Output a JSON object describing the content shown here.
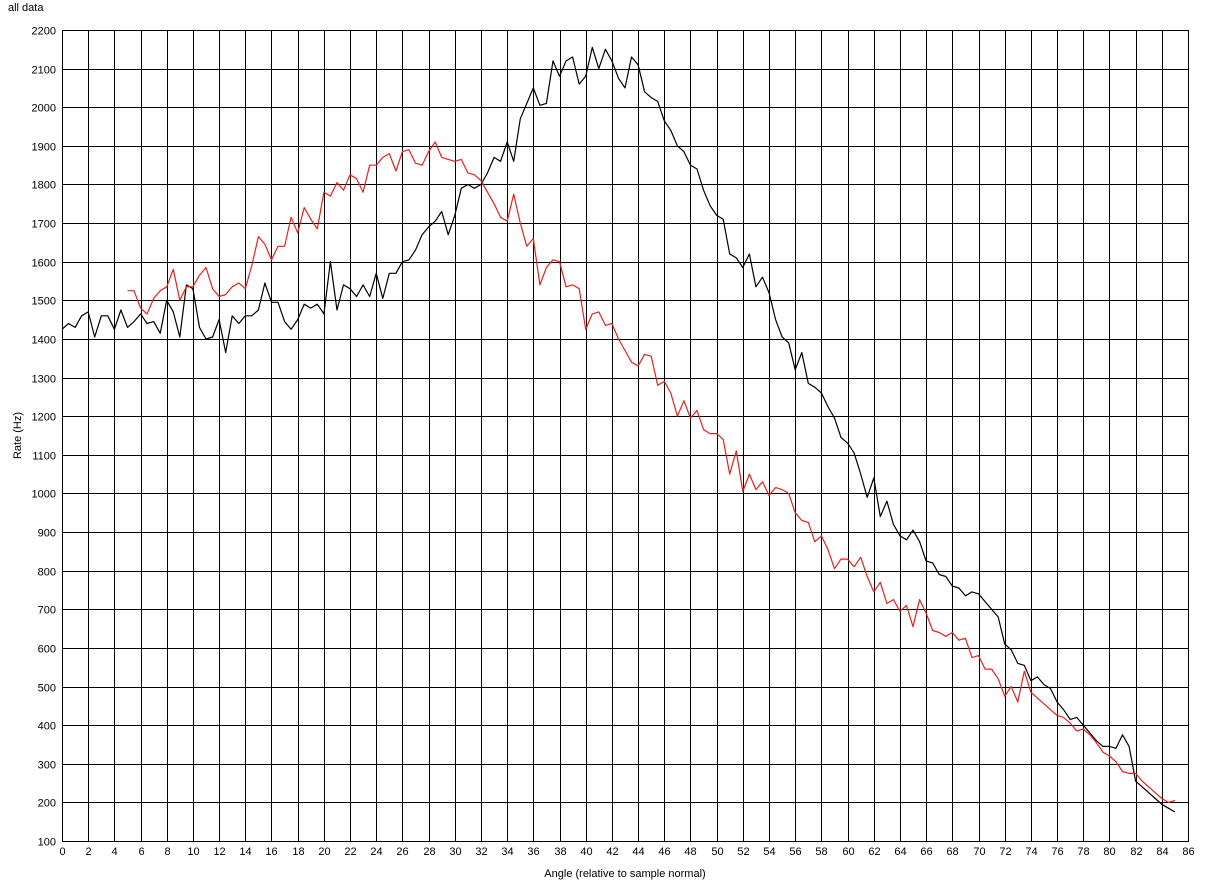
{
  "chart_data": {
    "type": "line",
    "title": "all data",
    "xlabel": "Angle (relative to sample normal)",
    "ylabel": "Rate (Hz)",
    "xlim": [
      0,
      86
    ],
    "ylim": [
      100,
      2200
    ],
    "x_tick_step": 2,
    "y_tick_step": 100,
    "grid": true,
    "legend": "none",
    "series": [
      {
        "color": "#000000",
        "points": [
          [
            0,
            1425
          ],
          [
            0.5,
            1440
          ],
          [
            1,
            1430
          ],
          [
            1.5,
            1460
          ],
          [
            2,
            1470
          ],
          [
            2.5,
            1405
          ],
          [
            3,
            1460
          ],
          [
            3.5,
            1460
          ],
          [
            4,
            1425
          ],
          [
            4.5,
            1475
          ],
          [
            5,
            1430
          ],
          [
            5.5,
            1445
          ],
          [
            6,
            1465
          ],
          [
            6.5,
            1440
          ],
          [
            7,
            1445
          ],
          [
            7.5,
            1415
          ],
          [
            8,
            1500
          ],
          [
            8.5,
            1470
          ],
          [
            9,
            1405
          ],
          [
            9.5,
            1540
          ],
          [
            10,
            1530
          ],
          [
            10.5,
            1430
          ],
          [
            11,
            1400
          ],
          [
            11.5,
            1405
          ],
          [
            12,
            1450
          ],
          [
            12.5,
            1365
          ],
          [
            13,
            1460
          ],
          [
            13.5,
            1440
          ],
          [
            14,
            1460
          ],
          [
            14.5,
            1460
          ],
          [
            15,
            1475
          ],
          [
            15.5,
            1545
          ],
          [
            16,
            1495
          ],
          [
            16.5,
            1495
          ],
          [
            17,
            1445
          ],
          [
            17.5,
            1425
          ],
          [
            18,
            1450
          ],
          [
            18.5,
            1490
          ],
          [
            19,
            1480
          ],
          [
            19.5,
            1490
          ],
          [
            20,
            1465
          ],
          [
            20.5,
            1600
          ],
          [
            21,
            1475
          ],
          [
            21.5,
            1540
          ],
          [
            22,
            1530
          ],
          [
            22.5,
            1510
          ],
          [
            23,
            1540
          ],
          [
            23.5,
            1510
          ],
          [
            24,
            1570
          ],
          [
            24.5,
            1505
          ],
          [
            25,
            1570
          ],
          [
            25.5,
            1570
          ],
          [
            26,
            1600
          ],
          [
            26.5,
            1605
          ],
          [
            27,
            1630
          ],
          [
            27.5,
            1670
          ],
          [
            28,
            1690
          ],
          [
            28.5,
            1705
          ],
          [
            29,
            1730
          ],
          [
            29.5,
            1670
          ],
          [
            30,
            1720
          ],
          [
            30.5,
            1790
          ],
          [
            31,
            1800
          ],
          [
            31.5,
            1790
          ],
          [
            32,
            1800
          ],
          [
            32.5,
            1830
          ],
          [
            33,
            1870
          ],
          [
            33.5,
            1860
          ],
          [
            34,
            1910
          ],
          [
            34.5,
            1860
          ],
          [
            35,
            1970
          ],
          [
            35.5,
            2010
          ],
          [
            36,
            2050
          ],
          [
            36.5,
            2005
          ],
          [
            37,
            2010
          ],
          [
            37.5,
            2120
          ],
          [
            38,
            2080
          ],
          [
            38.5,
            2120
          ],
          [
            39,
            2130
          ],
          [
            39.5,
            2060
          ],
          [
            40,
            2080
          ],
          [
            40.5,
            2155
          ],
          [
            41,
            2100
          ],
          [
            41.5,
            2150
          ],
          [
            42,
            2120
          ],
          [
            42.5,
            2075
          ],
          [
            43,
            2050
          ],
          [
            43.5,
            2130
          ],
          [
            44,
            2110
          ],
          [
            44.5,
            2040
          ],
          [
            45,
            2025
          ],
          [
            45.5,
            2015
          ],
          [
            46,
            1965
          ],
          [
            46.5,
            1940
          ],
          [
            47,
            1900
          ],
          [
            47.5,
            1885
          ],
          [
            48,
            1850
          ],
          [
            48.5,
            1840
          ],
          [
            49,
            1785
          ],
          [
            49.5,
            1745
          ],
          [
            50,
            1720
          ],
          [
            50.5,
            1710
          ],
          [
            51,
            1620
          ],
          [
            51.5,
            1610
          ],
          [
            52,
            1585
          ],
          [
            52.5,
            1620
          ],
          [
            53,
            1535
          ],
          [
            53.5,
            1560
          ],
          [
            54,
            1520
          ],
          [
            54.5,
            1450
          ],
          [
            55,
            1405
          ],
          [
            55.5,
            1390
          ],
          [
            56,
            1320
          ],
          [
            56.5,
            1365
          ],
          [
            57,
            1285
          ],
          [
            57.5,
            1275
          ],
          [
            58,
            1260
          ],
          [
            58.5,
            1225
          ],
          [
            59,
            1195
          ],
          [
            59.5,
            1145
          ],
          [
            60,
            1130
          ],
          [
            60.5,
            1105
          ],
          [
            61,
            1050
          ],
          [
            61.5,
            990
          ],
          [
            62,
            1040
          ],
          [
            62.5,
            940
          ],
          [
            63,
            980
          ],
          [
            63.5,
            920
          ],
          [
            64,
            890
          ],
          [
            64.5,
            880
          ],
          [
            65,
            905
          ],
          [
            65.5,
            875
          ],
          [
            66,
            825
          ],
          [
            66.5,
            820
          ],
          [
            67,
            790
          ],
          [
            67.5,
            785
          ],
          [
            68,
            760
          ],
          [
            68.5,
            755
          ],
          [
            69,
            735
          ],
          [
            69.5,
            745
          ],
          [
            70,
            740
          ],
          [
            70.5,
            720
          ],
          [
            71,
            700
          ],
          [
            71.5,
            680
          ],
          [
            72,
            610
          ],
          [
            72.5,
            595
          ],
          [
            73,
            560
          ],
          [
            73.5,
            555
          ],
          [
            74,
            515
          ],
          [
            74.5,
            525
          ],
          [
            75,
            505
          ],
          [
            75.5,
            495
          ],
          [
            76,
            460
          ],
          [
            76.5,
            440
          ],
          [
            77,
            415
          ],
          [
            77.5,
            420
          ],
          [
            78,
            400
          ],
          [
            78.5,
            380
          ],
          [
            79,
            360
          ],
          [
            79.5,
            345
          ],
          [
            80,
            345
          ],
          [
            80.5,
            340
          ],
          [
            81,
            375
          ],
          [
            81.5,
            345
          ],
          [
            82,
            255
          ],
          [
            82.5,
            240
          ],
          [
            83,
            225
          ],
          [
            83.5,
            210
          ],
          [
            84,
            195
          ],
          [
            84.5,
            185
          ],
          [
            85,
            175
          ]
        ]
      },
      {
        "color": "#e8201c",
        "points": [
          [
            5,
            1525
          ],
          [
            5.5,
            1525
          ],
          [
            6,
            1480
          ],
          [
            6.5,
            1465
          ],
          [
            7,
            1505
          ],
          [
            7.5,
            1525
          ],
          [
            8,
            1535
          ],
          [
            8.5,
            1580
          ],
          [
            9,
            1500
          ],
          [
            9.5,
            1535
          ],
          [
            10,
            1535
          ],
          [
            10.5,
            1565
          ],
          [
            11,
            1585
          ],
          [
            11.5,
            1530
          ],
          [
            12,
            1510
          ],
          [
            12.5,
            1515
          ],
          [
            13,
            1535
          ],
          [
            13.5,
            1545
          ],
          [
            14,
            1530
          ],
          [
            14.5,
            1590
          ],
          [
            15,
            1665
          ],
          [
            15.5,
            1645
          ],
          [
            16,
            1605
          ],
          [
            16.5,
            1640
          ],
          [
            17,
            1640
          ],
          [
            17.5,
            1715
          ],
          [
            18,
            1675
          ],
          [
            18.5,
            1740
          ],
          [
            19,
            1710
          ],
          [
            19.5,
            1685
          ],
          [
            20,
            1780
          ],
          [
            20.5,
            1770
          ],
          [
            21,
            1805
          ],
          [
            21.5,
            1785
          ],
          [
            22,
            1825
          ],
          [
            22.5,
            1815
          ],
          [
            23,
            1780
          ],
          [
            23.5,
            1850
          ],
          [
            24,
            1850
          ],
          [
            24.5,
            1870
          ],
          [
            25,
            1880
          ],
          [
            25.5,
            1835
          ],
          [
            26,
            1885
          ],
          [
            26.5,
            1890
          ],
          [
            27,
            1855
          ],
          [
            27.5,
            1850
          ],
          [
            28,
            1885
          ],
          [
            28.5,
            1910
          ],
          [
            29,
            1870
          ],
          [
            29.5,
            1865
          ],
          [
            30,
            1860
          ],
          [
            30.5,
            1865
          ],
          [
            31,
            1830
          ],
          [
            31.5,
            1825
          ],
          [
            32,
            1810
          ],
          [
            32.5,
            1780
          ],
          [
            33,
            1750
          ],
          [
            33.5,
            1715
          ],
          [
            34,
            1705
          ],
          [
            34.5,
            1775
          ],
          [
            35,
            1700
          ],
          [
            35.5,
            1640
          ],
          [
            36,
            1660
          ],
          [
            36.5,
            1540
          ],
          [
            37,
            1585
          ],
          [
            37.5,
            1605
          ],
          [
            38,
            1600
          ],
          [
            38.5,
            1535
          ],
          [
            39,
            1540
          ],
          [
            39.5,
            1530
          ],
          [
            40,
            1425
          ],
          [
            40.5,
            1465
          ],
          [
            41,
            1470
          ],
          [
            41.5,
            1435
          ],
          [
            42,
            1440
          ],
          [
            42.5,
            1400
          ],
          [
            43,
            1370
          ],
          [
            43.5,
            1340
          ],
          [
            44,
            1330
          ],
          [
            44.5,
            1360
          ],
          [
            45,
            1355
          ],
          [
            45.5,
            1280
          ],
          [
            46,
            1290
          ],
          [
            46.5,
            1260
          ],
          [
            47,
            1200
          ],
          [
            47.5,
            1240
          ],
          [
            48,
            1195
          ],
          [
            48.5,
            1215
          ],
          [
            49,
            1165
          ],
          [
            49.5,
            1155
          ],
          [
            50,
            1155
          ],
          [
            50.5,
            1140
          ],
          [
            51,
            1050
          ],
          [
            51.5,
            1110
          ],
          [
            52,
            1005
          ],
          [
            52.5,
            1050
          ],
          [
            53,
            1010
          ],
          [
            53.5,
            1030
          ],
          [
            54,
            995
          ],
          [
            54.5,
            1015
          ],
          [
            55,
            1010
          ],
          [
            55.5,
            1000
          ],
          [
            56,
            950
          ],
          [
            56.5,
            930
          ],
          [
            57,
            925
          ],
          [
            57.5,
            875
          ],
          [
            58,
            890
          ],
          [
            58.5,
            855
          ],
          [
            59,
            805
          ],
          [
            59.5,
            830
          ],
          [
            60,
            830
          ],
          [
            60.5,
            810
          ],
          [
            61,
            835
          ],
          [
            61.5,
            785
          ],
          [
            62,
            745
          ],
          [
            62.5,
            770
          ],
          [
            63,
            715
          ],
          [
            63.5,
            725
          ],
          [
            64,
            695
          ],
          [
            64.5,
            710
          ],
          [
            65,
            655
          ],
          [
            65.5,
            725
          ],
          [
            66,
            690
          ],
          [
            66.5,
            645
          ],
          [
            67,
            640
          ],
          [
            67.5,
            630
          ],
          [
            68,
            640
          ],
          [
            68.5,
            620
          ],
          [
            69,
            625
          ],
          [
            69.5,
            575
          ],
          [
            70,
            580
          ],
          [
            70.5,
            545
          ],
          [
            71,
            545
          ],
          [
            71.5,
            520
          ],
          [
            72,
            475
          ],
          [
            72.5,
            500
          ],
          [
            73,
            460
          ],
          [
            73.5,
            540
          ],
          [
            74,
            485
          ],
          [
            74.5,
            470
          ],
          [
            75,
            455
          ],
          [
            75.5,
            440
          ],
          [
            76,
            425
          ],
          [
            76.5,
            420
          ],
          [
            77,
            405
          ],
          [
            77.5,
            385
          ],
          [
            78,
            390
          ],
          [
            78.5,
            375
          ],
          [
            79,
            355
          ],
          [
            79.5,
            330
          ],
          [
            80,
            320
          ],
          [
            80.5,
            305
          ],
          [
            81,
            280
          ],
          [
            81.5,
            275
          ],
          [
            82,
            275
          ],
          [
            82.5,
            255
          ],
          [
            83,
            240
          ],
          [
            83.5,
            225
          ],
          [
            84,
            210
          ],
          [
            84.5,
            200
          ],
          [
            85,
            205
          ]
        ]
      }
    ]
  }
}
